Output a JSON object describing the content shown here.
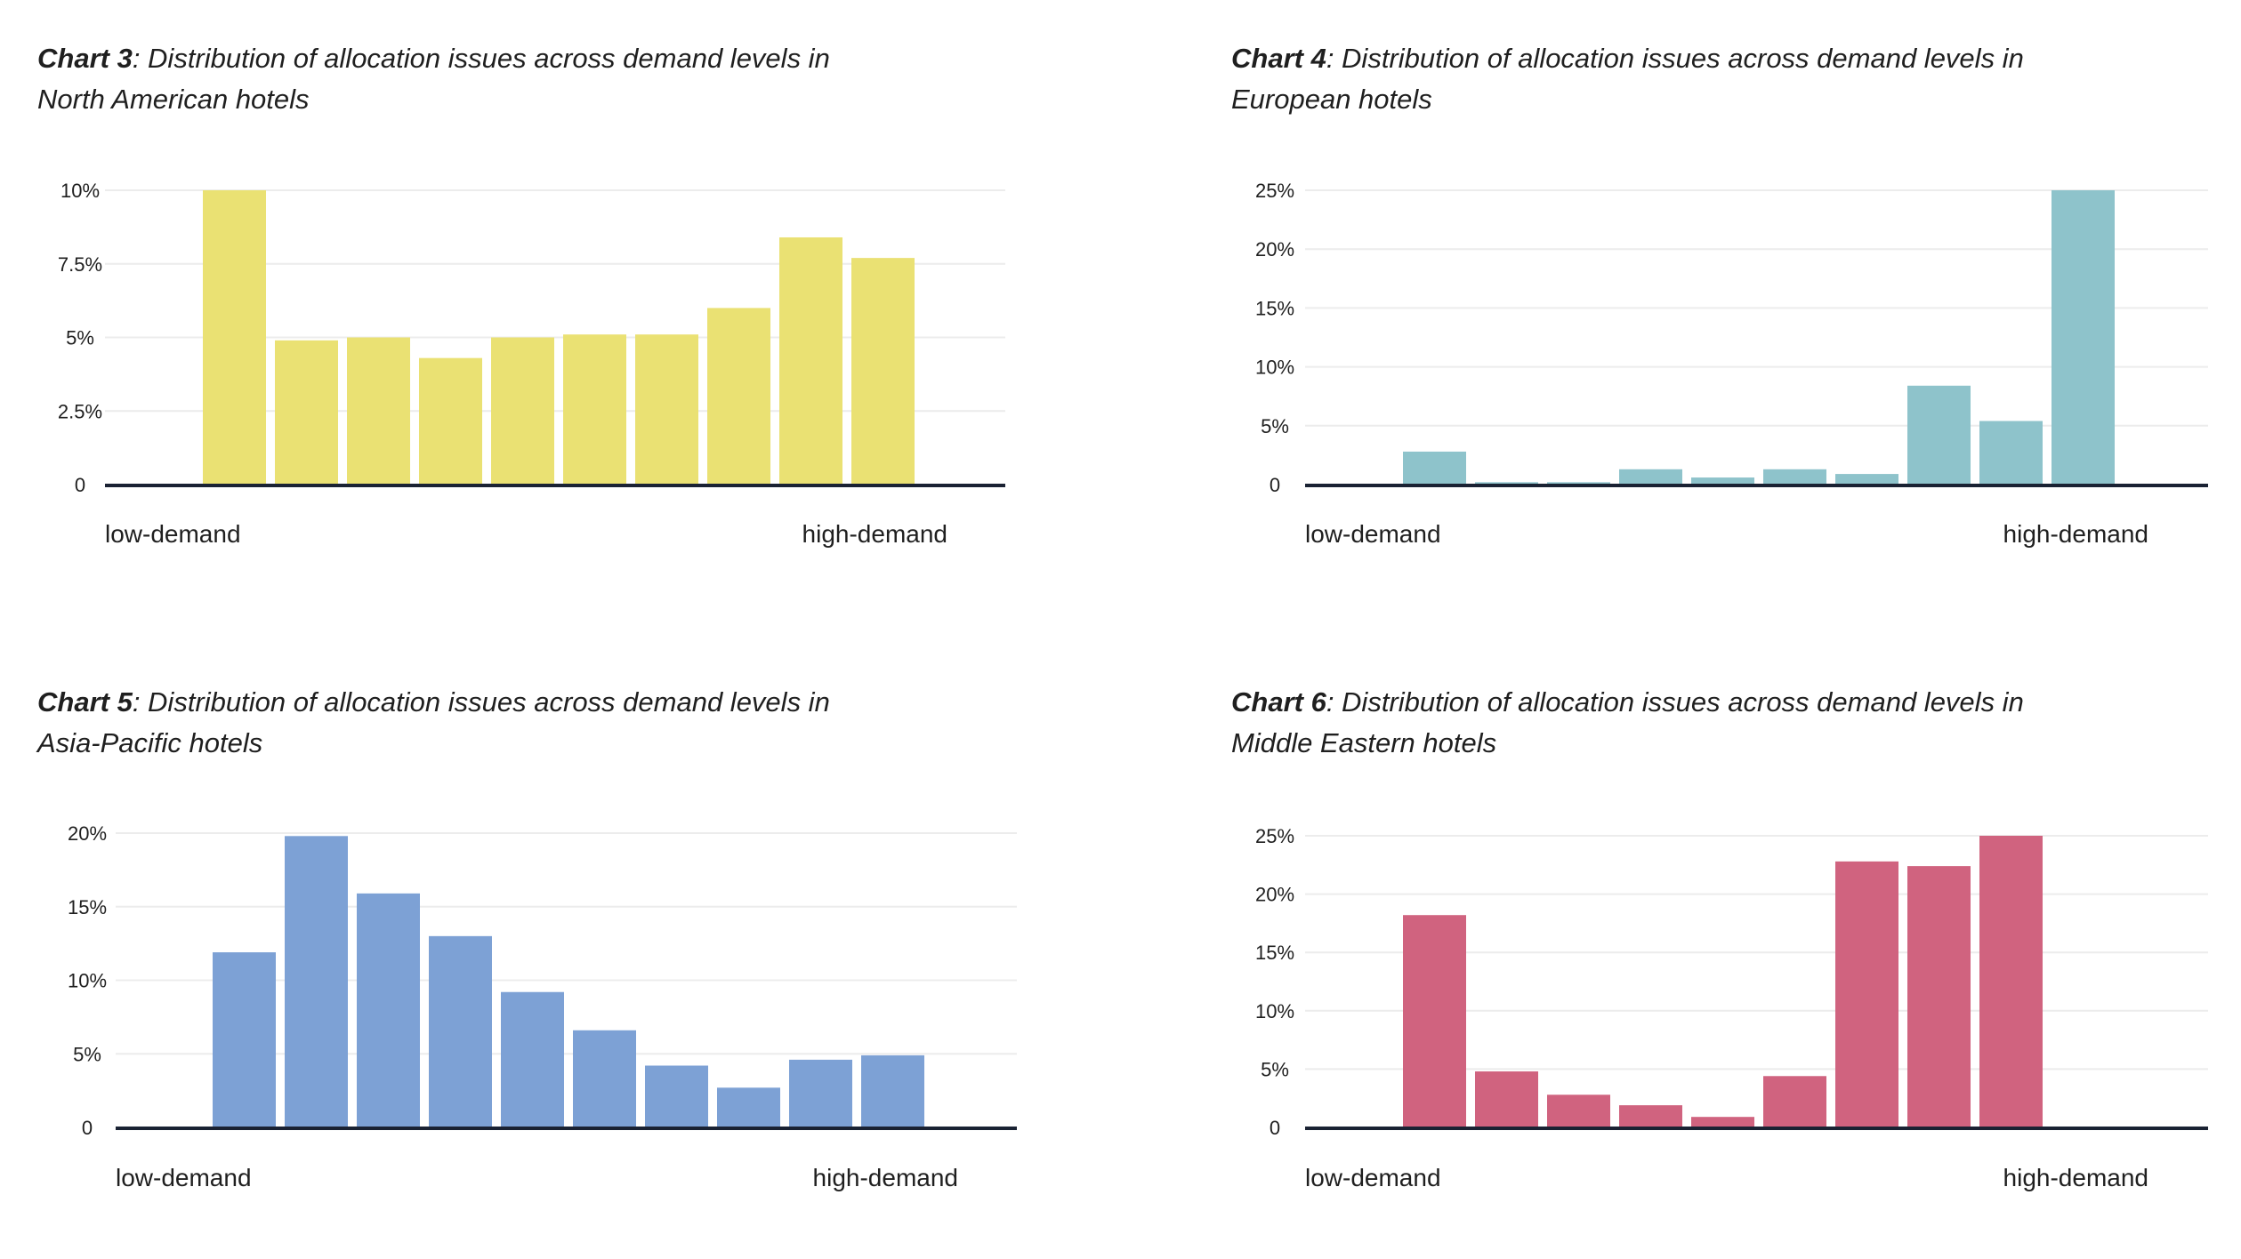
{
  "chart_data": [
    {
      "type": "bar",
      "title_lead": "Chart 3",
      "title_rest": ": Distribution of allocation issues across demand levels in",
      "title_line2": "North American hotels",
      "color": "#EAE173",
      "values": [
        10,
        4.9,
        5.0,
        4.3,
        5.0,
        5.1,
        5.1,
        6.0,
        8.4,
        7.7
      ],
      "ylim": [
        0,
        10
      ],
      "yticks": [
        0,
        2.5,
        5,
        7.5,
        10
      ],
      "ytick_labels": [
        "0",
        "2.5%",
        "5%",
        "7.5%",
        "10%"
      ],
      "x_start_label": "low-demand",
      "x_end_label": "high-demand",
      "grid": true
    },
    {
      "type": "bar",
      "title_lead": "Chart 4",
      "title_rest": ": Distribution of allocation issues across demand levels in",
      "title_line2": "European hotels",
      "color": "#8EC3CB",
      "values": [
        2.8,
        0.2,
        0.2,
        1.3,
        0.6,
        1.3,
        0.9,
        8.4,
        5.4,
        25
      ],
      "ylim": [
        0,
        25
      ],
      "yticks": [
        0,
        5,
        10,
        15,
        20,
        25
      ],
      "ytick_labels": [
        "0",
        "5%",
        "10%",
        "15%",
        "20%",
        "25%"
      ],
      "x_start_label": "low-demand",
      "x_end_label": "high-demand",
      "grid": true
    },
    {
      "type": "bar",
      "title_lead": "Chart 5",
      "title_rest": ": Distribution of allocation issues across demand levels in",
      "title_line2": "Asia-Pacific hotels",
      "color": "#7DA1D5",
      "values": [
        11.9,
        19.8,
        15.9,
        13.0,
        9.2,
        6.6,
        4.2,
        2.7,
        4.6,
        4.9
      ],
      "ylim": [
        0,
        20
      ],
      "yticks": [
        0,
        5,
        10,
        15,
        20
      ],
      "ytick_labels": [
        "0",
        "5%",
        "10%",
        "15%",
        "20%"
      ],
      "x_start_label": "low-demand",
      "x_end_label": "high-demand",
      "grid": true
    },
    {
      "type": "bar",
      "title_lead": "Chart 6",
      "title_rest": ": Distribution of allocation issues across demand levels in",
      "title_line2": "Middle Eastern hotels",
      "color": "#D0637F",
      "values": [
        18.2,
        4.8,
        2.8,
        1.9,
        0.9,
        4.4,
        22.8,
        22.4,
        25,
        0
      ],
      "ylim": [
        0,
        25
      ],
      "yticks": [
        0,
        5,
        10,
        15,
        20,
        25
      ],
      "ytick_labels": [
        "0",
        "5%",
        "10%",
        "15%",
        "20%",
        "25%"
      ],
      "x_start_label": "low-demand",
      "x_end_label": "high-demand",
      "grid": true
    }
  ]
}
